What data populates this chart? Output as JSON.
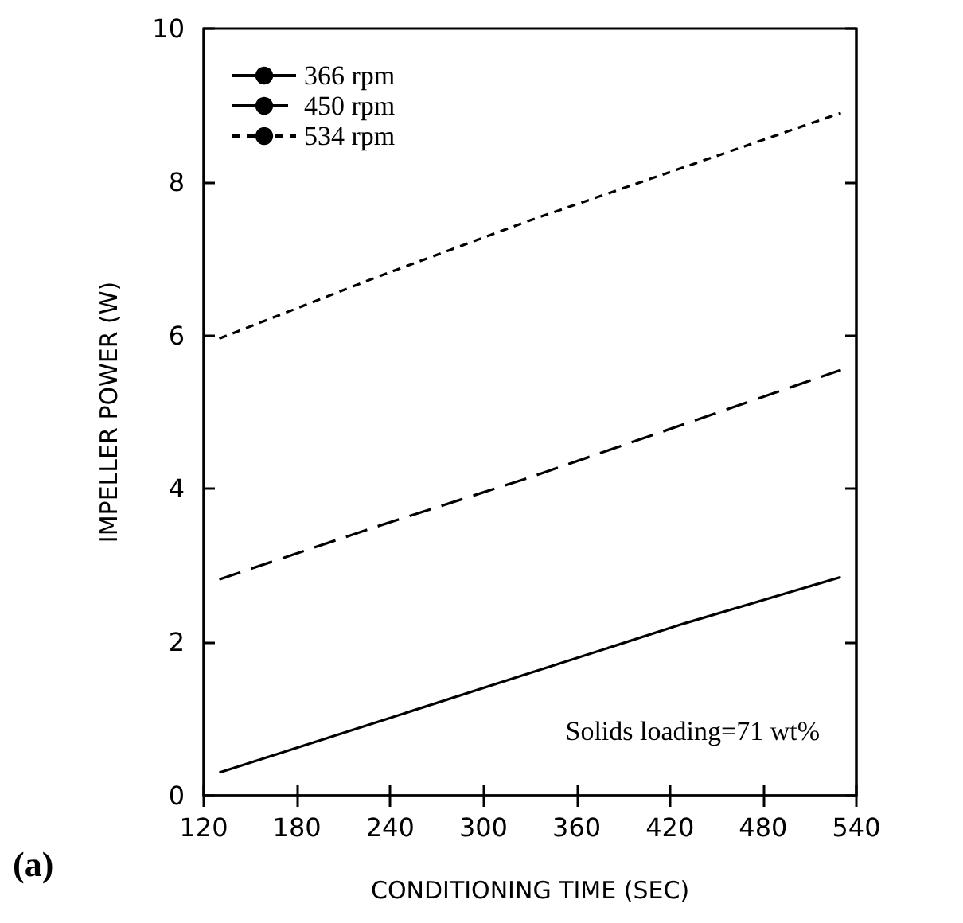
{
  "chart_data": {
    "type": "line",
    "xlabel": "CONDITIONING TIME (SEC)",
    "ylabel": "IMPELLER POWER (W)",
    "x": [
      130,
      230,
      330,
      430,
      530
    ],
    "series": [
      {
        "name": "366 rpm",
        "color": "#000000",
        "line_style": "solid",
        "values": [
          0.3,
          0.95,
          1.6,
          2.25,
          2.85
        ]
      },
      {
        "name": "450 rpm",
        "color": "#000000",
        "line_style": "dashed",
        "values": [
          2.82,
          3.5,
          4.15,
          4.85,
          5.55
        ]
      },
      {
        "name": "534 rpm",
        "color": "#000000",
        "line_style": "dotted",
        "values": [
          5.96,
          6.75,
          7.5,
          8.2,
          8.9
        ]
      }
    ],
    "xlim": [
      120,
      540
    ],
    "xticks": [
      120,
      180,
      240,
      300,
      360,
      420,
      480,
      540
    ],
    "ylim": [
      0,
      10
    ],
    "yticks": [
      0,
      2,
      4,
      6,
      8,
      10
    ],
    "grid": false,
    "legend": "top left",
    "marker": "none",
    "annotations": [
      "Solids loading=71 wt%",
      "(a)"
    ]
  }
}
